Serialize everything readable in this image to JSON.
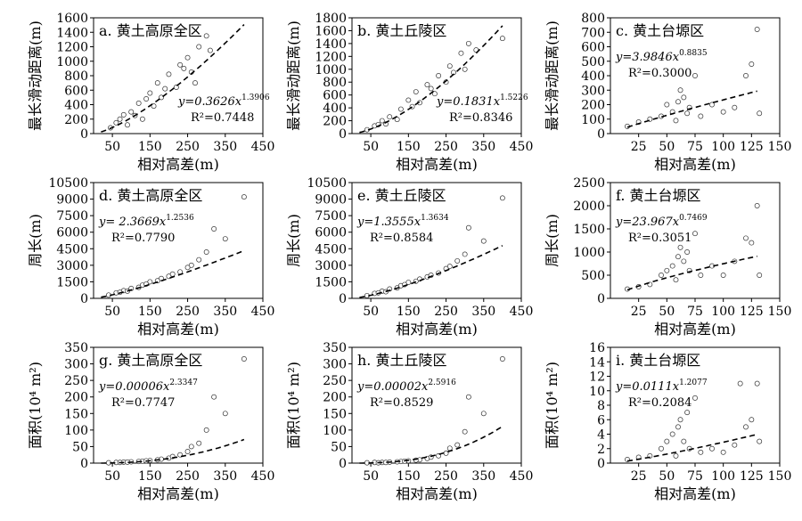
{
  "chart_data": [
    {
      "id": "a",
      "type": "scatter",
      "title": "a. 黄土高原全区",
      "xlabel": "相对高差(m)",
      "ylabel": "最长滑动距离(m)",
      "xlim": [
        0,
        450
      ],
      "ylim": [
        0,
        1600
      ],
      "xticks": [
        50,
        150,
        250,
        350,
        450
      ],
      "yticks": [
        0,
        200,
        400,
        600,
        800,
        1000,
        1200,
        1400,
        1600
      ],
      "fit": {
        "a": 0.3626,
        "b": 1.3906,
        "equation": "y=0.3626x",
        "exponent": "1.3906",
        "r2_label": "R²=0.7448",
        "x_range": [
          20,
          400
        ]
      },
      "points": [
        [
          45,
          80
        ],
        [
          60,
          150
        ],
        [
          80,
          260
        ],
        [
          100,
          300
        ],
        [
          120,
          420
        ],
        [
          150,
          560
        ],
        [
          170,
          700
        ],
        [
          200,
          820
        ],
        [
          230,
          950
        ],
        [
          250,
          1050
        ],
        [
          280,
          1200
        ],
        [
          300,
          1350
        ],
        [
          130,
          200
        ],
        [
          90,
          120
        ],
        [
          180,
          500
        ],
        [
          220,
          640
        ],
        [
          260,
          850
        ],
        [
          310,
          1150
        ],
        [
          70,
          200
        ],
        [
          160,
          380
        ],
        [
          110,
          250
        ],
        [
          140,
          480
        ],
        [
          190,
          620
        ],
        [
          240,
          900
        ],
        [
          270,
          700
        ]
      ]
    },
    {
      "id": "b",
      "type": "scatter",
      "title": "b. 黄土丘陵区",
      "xlabel": "相对高差(m)",
      "ylabel": "最长滑动距离(m)",
      "xlim": [
        0,
        450
      ],
      "ylim": [
        0,
        1800
      ],
      "xticks": [
        50,
        150,
        250,
        350,
        450
      ],
      "yticks": [
        0,
        200,
        400,
        600,
        800,
        1000,
        1200,
        1400,
        1600,
        1800
      ],
      "fit": {
        "a": 0.1831,
        "b": 1.5226,
        "equation": "y=0.1831x",
        "exponent": "1.5226",
        "r2_label": "R²=0.8346",
        "x_range": [
          20,
          400
        ]
      },
      "points": [
        [
          40,
          60
        ],
        [
          60,
          120
        ],
        [
          80,
          200
        ],
        [
          100,
          260
        ],
        [
          130,
          380
        ],
        [
          150,
          520
        ],
        [
          170,
          650
        ],
        [
          200,
          760
        ],
        [
          230,
          900
        ],
        [
          260,
          1050
        ],
        [
          290,
          1250
        ],
        [
          310,
          1400
        ],
        [
          120,
          220
        ],
        [
          90,
          150
        ],
        [
          180,
          480
        ],
        [
          220,
          620
        ],
        [
          250,
          800
        ],
        [
          300,
          1000
        ],
        [
          70,
          140
        ],
        [
          160,
          420
        ],
        [
          210,
          700
        ],
        [
          270,
          950
        ],
        [
          330,
          1300
        ],
        [
          400,
          1480
        ]
      ]
    },
    {
      "id": "c",
      "type": "scatter",
      "title": "c. 黄土台塬区",
      "xlabel": "相对高差(m)",
      "ylabel": "最长滑动距离(m)",
      "xlim": [
        0,
        150
      ],
      "ylim": [
        0,
        800
      ],
      "xticks": [
        25,
        50,
        75,
        100,
        125,
        150
      ],
      "yticks": [
        0,
        100,
        200,
        300,
        400,
        500,
        600,
        700,
        800
      ],
      "fit": {
        "a": 3.9846,
        "b": 0.8835,
        "equation": "y=3.9846x",
        "exponent": "0.8835",
        "r2_label": "R²=0.3000",
        "x_range": [
          15,
          130
        ]
      },
      "points": [
        [
          15,
          50
        ],
        [
          25,
          80
        ],
        [
          35,
          100
        ],
        [
          45,
          120
        ],
        [
          50,
          200
        ],
        [
          55,
          150
        ],
        [
          60,
          220
        ],
        [
          62,
          300
        ],
        [
          65,
          250
        ],
        [
          70,
          180
        ],
        [
          75,
          400
        ],
        [
          80,
          120
        ],
        [
          90,
          200
        ],
        [
          100,
          150
        ],
        [
          110,
          180
        ],
        [
          120,
          400
        ],
        [
          125,
          480
        ],
        [
          130,
          720
        ],
        [
          132,
          140
        ],
        [
          58,
          90
        ],
        [
          68,
          140
        ]
      ]
    },
    {
      "id": "d",
      "type": "scatter",
      "title": "d. 黄土高原全区",
      "xlabel": "相对高差(m)",
      "ylabel": "周长(m)",
      "xlim": [
        0,
        450
      ],
      "ylim": [
        0,
        10500
      ],
      "xticks": [
        50,
        150,
        250,
        350,
        450
      ],
      "yticks": [
        0,
        1500,
        3000,
        4500,
        6000,
        7500,
        9000,
        10500
      ],
      "fit": {
        "a": 2.3669,
        "b": 1.2536,
        "equation": "y= 2.3669x",
        "exponent": "1.2536",
        "r2_label": "R²=0.7790",
        "x_range": [
          20,
          400
        ]
      },
      "points": [
        [
          40,
          300
        ],
        [
          60,
          500
        ],
        [
          80,
          700
        ],
        [
          100,
          900
        ],
        [
          130,
          1200
        ],
        [
          150,
          1500
        ],
        [
          180,
          1800
        ],
        [
          200,
          2000
        ],
        [
          230,
          2400
        ],
        [
          260,
          3000
        ],
        [
          280,
          3500
        ],
        [
          300,
          4200
        ],
        [
          320,
          6300
        ],
        [
          350,
          5400
        ],
        [
          400,
          9200
        ],
        [
          120,
          1000
        ],
        [
          90,
          650
        ],
        [
          170,
          1600
        ],
        [
          210,
          2200
        ],
        [
          250,
          2800
        ],
        [
          70,
          550
        ],
        [
          140,
          1300
        ]
      ]
    },
    {
      "id": "e",
      "type": "scatter",
      "title": "e. 黄土丘陵区",
      "xlabel": "相对高差(m)",
      "ylabel": "周长(m)",
      "xlim": [
        0,
        450
      ],
      "ylim": [
        0,
        10500
      ],
      "xticks": [
        50,
        150,
        250,
        350,
        450
      ],
      "yticks": [
        0,
        1500,
        3000,
        4500,
        6000,
        7500,
        9000,
        10500
      ],
      "fit": {
        "a": 1.3555,
        "b": 1.3634,
        "equation": "y=1.3555x",
        "exponent": "1.3634",
        "r2_label": "R²=0.8584",
        "x_range": [
          20,
          400
        ]
      },
      "points": [
        [
          40,
          250
        ],
        [
          60,
          450
        ],
        [
          80,
          650
        ],
        [
          100,
          850
        ],
        [
          130,
          1150
        ],
        [
          150,
          1450
        ],
        [
          180,
          1750
        ],
        [
          200,
          1950
        ],
        [
          230,
          2300
        ],
        [
          260,
          2900
        ],
        [
          280,
          3400
        ],
        [
          300,
          4000
        ],
        [
          310,
          6400
        ],
        [
          350,
          5200
        ],
        [
          400,
          9100
        ],
        [
          120,
          950
        ],
        [
          90,
          600
        ],
        [
          170,
          1550
        ],
        [
          210,
          2100
        ],
        [
          250,
          2700
        ],
        [
          70,
          500
        ],
        [
          140,
          1250
        ]
      ]
    },
    {
      "id": "f",
      "type": "scatter",
      "title": "f. 黄土台塬区",
      "xlabel": "相对高差(m)",
      "ylabel": "周长(m)",
      "xlim": [
        0,
        150
      ],
      "ylim": [
        0,
        2500
      ],
      "xticks": [
        25,
        50,
        75,
        100,
        125,
        150
      ],
      "yticks": [
        0,
        500,
        1000,
        1500,
        2000,
        2500
      ],
      "fit": {
        "a": 23.967,
        "b": 0.7469,
        "equation": "y=23.967x",
        "exponent": "0.7469",
        "r2_label": "R²=0.3051",
        "x_range": [
          15,
          130
        ]
      },
      "points": [
        [
          15,
          200
        ],
        [
          25,
          250
        ],
        [
          35,
          300
        ],
        [
          45,
          500
        ],
        [
          50,
          600
        ],
        [
          55,
          700
        ],
        [
          60,
          900
        ],
        [
          62,
          1100
        ],
        [
          65,
          800
        ],
        [
          70,
          600
        ],
        [
          75,
          1400
        ],
        [
          80,
          500
        ],
        [
          90,
          700
        ],
        [
          100,
          500
        ],
        [
          110,
          800
        ],
        [
          120,
          1300
        ],
        [
          125,
          1200
        ],
        [
          130,
          2000
        ],
        [
          132,
          500
        ],
        [
          58,
          400
        ],
        [
          68,
          1000
        ]
      ]
    },
    {
      "id": "g",
      "type": "scatter",
      "title": "g. 黄土高原全区",
      "xlabel": "相对高差(m)",
      "ylabel": "面积(10⁴ m²)",
      "xlim": [
        0,
        450
      ],
      "ylim": [
        0,
        350
      ],
      "xticks": [
        50,
        150,
        250,
        350,
        450
      ],
      "yticks": [
        0,
        50,
        100,
        150,
        200,
        250,
        300,
        350
      ],
      "fit": {
        "a": 6e-05,
        "b": 2.3347,
        "equation": "y=0.00006x",
        "exponent": "2.3347",
        "r2_label": "R²=0.7747",
        "x_range": [
          20,
          400
        ]
      },
      "points": [
        [
          40,
          1
        ],
        [
          60,
          2
        ],
        [
          80,
          3
        ],
        [
          100,
          4
        ],
        [
          130,
          6
        ],
        [
          150,
          8
        ],
        [
          180,
          12
        ],
        [
          200,
          15
        ],
        [
          230,
          25
        ],
        [
          260,
          50
        ],
        [
          280,
          60
        ],
        [
          300,
          100
        ],
        [
          320,
          200
        ],
        [
          350,
          150
        ],
        [
          400,
          315
        ],
        [
          120,
          5
        ],
        [
          90,
          3
        ],
        [
          170,
          10
        ],
        [
          210,
          20
        ],
        [
          250,
          35
        ],
        [
          70,
          2
        ],
        [
          140,
          7
        ]
      ]
    },
    {
      "id": "h",
      "type": "scatter",
      "title": "h. 黄土丘陵区",
      "xlabel": "相对高差(m)",
      "ylabel": "面积(10⁴ m²)",
      "xlim": [
        0,
        450
      ],
      "ylim": [
        0,
        350
      ],
      "xticks": [
        50,
        150,
        250,
        350,
        450
      ],
      "yticks": [
        0,
        50,
        100,
        150,
        200,
        250,
        300,
        350
      ],
      "fit": {
        "a": 2e-05,
        "b": 2.5916,
        "equation": "y=0.00002x",
        "exponent": "2.5916",
        "r2_label": "R²=0.8529",
        "x_range": [
          20,
          400
        ]
      },
      "points": [
        [
          40,
          1
        ],
        [
          60,
          2
        ],
        [
          80,
          2
        ],
        [
          100,
          3
        ],
        [
          130,
          5
        ],
        [
          150,
          7
        ],
        [
          180,
          10
        ],
        [
          200,
          14
        ],
        [
          230,
          22
        ],
        [
          260,
          45
        ],
        [
          280,
          55
        ],
        [
          300,
          95
        ],
        [
          310,
          200
        ],
        [
          350,
          150
        ],
        [
          400,
          315
        ],
        [
          120,
          4
        ],
        [
          90,
          2
        ],
        [
          170,
          9
        ],
        [
          210,
          18
        ],
        [
          250,
          30
        ],
        [
          70,
          1
        ],
        [
          140,
          6
        ]
      ]
    },
    {
      "id": "i",
      "type": "scatter",
      "title": "i. 黄土台塬区",
      "xlabel": "相对高差(m)",
      "ylabel": "面积(10⁴ m²)",
      "xlim": [
        0,
        150
      ],
      "ylim": [
        0,
        16
      ],
      "xticks": [
        25,
        50,
        75,
        100,
        125,
        150
      ],
      "yticks": [
        0,
        2,
        4,
        6,
        8,
        10,
        12,
        14,
        16
      ],
      "fit": {
        "a": 0.0111,
        "b": 1.2077,
        "equation": "y=0.0111x",
        "exponent": "1.2077",
        "r2_label": "R²=0.2084",
        "x_range": [
          15,
          130
        ]
      },
      "points": [
        [
          15,
          0.5
        ],
        [
          25,
          0.8
        ],
        [
          35,
          1
        ],
        [
          45,
          2
        ],
        [
          50,
          3
        ],
        [
          55,
          4
        ],
        [
          60,
          5
        ],
        [
          62,
          6
        ],
        [
          65,
          3
        ],
        [
          70,
          2
        ],
        [
          75,
          9
        ],
        [
          80,
          1.5
        ],
        [
          90,
          2
        ],
        [
          100,
          1.5
        ],
        [
          110,
          2.5
        ],
        [
          115,
          11
        ],
        [
          120,
          5
        ],
        [
          125,
          6
        ],
        [
          130,
          11
        ],
        [
          132,
          3
        ],
        [
          58,
          1
        ],
        [
          68,
          7
        ]
      ]
    }
  ]
}
